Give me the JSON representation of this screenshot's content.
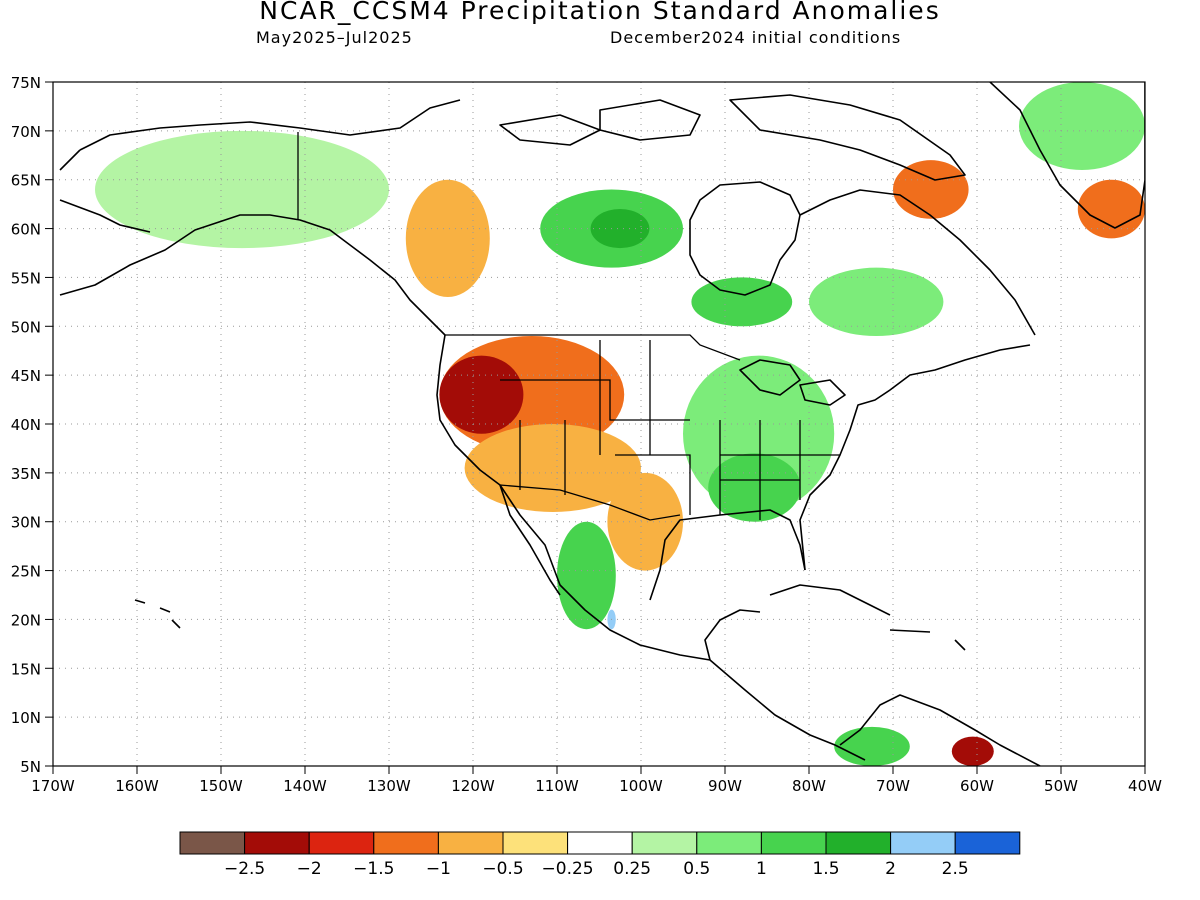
{
  "header": {
    "title": "NCAR_CCSM4 Precipitation Standard Anomalies",
    "valid_period": "May2025–Jul2025",
    "initial_conditions": "December2024 initial conditions"
  },
  "map": {
    "projection": "cylindrical equidistant",
    "lon_range": [
      -170,
      -40
    ],
    "lat_range": [
      5,
      75
    ],
    "grid": "dotted",
    "lat_labels": [
      "5N",
      "10N",
      "15N",
      "20N",
      "25N",
      "30N",
      "35N",
      "40N",
      "45N",
      "50N",
      "55N",
      "60N",
      "65N",
      "70N",
      "75N"
    ],
    "lon_labels": [
      "170W",
      "160W",
      "150W",
      "140W",
      "130W",
      "120W",
      "110W",
      "100W",
      "90W",
      "80W",
      "70W",
      "60W",
      "50W",
      "40W"
    ]
  },
  "colors": {
    "below_m2_5": "#7a5648",
    "m2_5_m2": "#a30c07",
    "m2_m1_5": "#dc2410",
    "m1_5_m1": "#f06e1c",
    "m1_m0_5": "#f8b142",
    "m0_5_m0_25": "#fde17a",
    "neutral": "#ffffff",
    "p0_25_p0_5": "#b4f4a4",
    "p0_5_p1": "#7cec7a",
    "p1_p1_5": "#47d34e",
    "p1_5_p2": "#22b02b",
    "p2_p2_5": "#94cdf7",
    "above_p2_5": "#1a63d8",
    "coastline": "#000000"
  },
  "colorbar": {
    "swatches": [
      "#7a5648",
      "#a30c07",
      "#dc2410",
      "#f06e1c",
      "#f8b142",
      "#fde17a",
      "#ffffff",
      "#b4f4a4",
      "#7cec7a",
      "#47d34e",
      "#22b02b",
      "#94cdf7",
      "#1a63d8"
    ],
    "labels": [
      "−2.5",
      "−2",
      "−1.5",
      "−1",
      "−0.5",
      "−0.25",
      "0.25",
      "0.5",
      "1",
      "1.5",
      "2",
      "2.5"
    ]
  },
  "anomaly_regions": [
    {
      "name": "alaska-wet",
      "category": "p0_5_p1",
      "lon": [
        -162,
        -135
      ],
      "lat": [
        60,
        69
      ]
    },
    {
      "name": "alaska-interior-wet",
      "category": "p0_25_p0_5",
      "lon": [
        -165,
        -130
      ],
      "lat": [
        58,
        70
      ]
    },
    {
      "name": "canada-north-wet",
      "category": "p1_p1_5",
      "lon": [
        -112,
        -95
      ],
      "lat": [
        56,
        64
      ]
    },
    {
      "name": "canada-core-wet",
      "category": "p1_5_p2",
      "lon": [
        -106,
        -99
      ],
      "lat": [
        58,
        62
      ]
    },
    {
      "name": "ontario-wet",
      "category": "p1_p1_5",
      "lon": [
        -94,
        -82
      ],
      "lat": [
        50,
        55
      ]
    },
    {
      "name": "bc-dry",
      "category": "m1_m0_5",
      "lon": [
        -128,
        -118
      ],
      "lat": [
        53,
        65
      ]
    },
    {
      "name": "us-west-dry",
      "category": "m1_5_m1",
      "lon": [
        -124,
        -102
      ],
      "lat": [
        37,
        49
      ]
    },
    {
      "name": "us-great-basin-dry",
      "category": "m2_5_m2",
      "lon": [
        -124,
        -114
      ],
      "lat": [
        39,
        47
      ]
    },
    {
      "name": "us-southwest-dry",
      "category": "m1_m0_5",
      "lon": [
        -121,
        -100
      ],
      "lat": [
        31,
        40
      ]
    },
    {
      "name": "texas-dry",
      "category": "m1_m0_5",
      "lon": [
        -104,
        -95
      ],
      "lat": [
        25,
        35
      ]
    },
    {
      "name": "us-east-wet",
      "category": "p0_5_p1",
      "lon": [
        -95,
        -77
      ],
      "lat": [
        31,
        47
      ]
    },
    {
      "name": "us-southeast-wet",
      "category": "p1_p1_5",
      "lon": [
        -92,
        -81
      ],
      "lat": [
        30,
        37
      ]
    },
    {
      "name": "mexico-west-wet",
      "category": "p1_p1_5",
      "lon": [
        -110,
        -103
      ],
      "lat": [
        19,
        30
      ]
    },
    {
      "name": "mexico-coast-blue",
      "category": "p2_p2_5",
      "lon": [
        -104,
        -103
      ],
      "lat": [
        19,
        21
      ]
    },
    {
      "name": "quebec-wet",
      "category": "p0_5_p1",
      "lon": [
        -80,
        -64
      ],
      "lat": [
        49,
        56
      ]
    },
    {
      "name": "labrador-dry",
      "category": "m1_5_m1",
      "lon": [
        -70,
        -61
      ],
      "lat": [
        61,
        67
      ]
    },
    {
      "name": "greenland-wet",
      "category": "p0_5_p1",
      "lon": [
        -55,
        -40
      ],
      "lat": [
        66,
        75
      ]
    },
    {
      "name": "greenland-dry",
      "category": "m1_5_m1",
      "lon": [
        -48,
        -40
      ],
      "lat": [
        59,
        65
      ]
    },
    {
      "name": "venezuela-dry",
      "category": "m2_5_m2",
      "lon": [
        -63,
        -58
      ],
      "lat": [
        5,
        8
      ]
    },
    {
      "name": "colombia-wet",
      "category": "p1_p1_5",
      "lon": [
        -77,
        -68
      ],
      "lat": [
        5,
        9
      ]
    }
  ]
}
